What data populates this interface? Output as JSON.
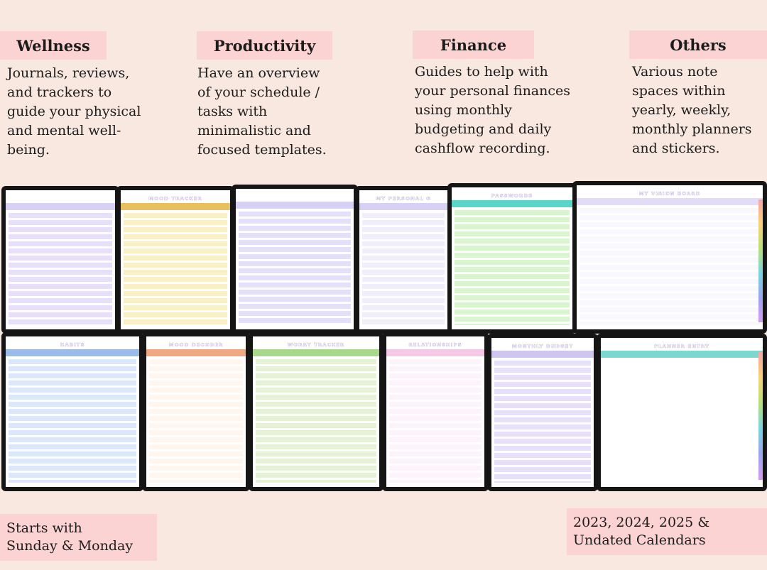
{
  "sections": [
    {
      "title": "Wellness",
      "lines": [
        "Journals, reviews,",
        "and trackers to",
        "guide your physical",
        "and mental well-",
        "being."
      ]
    },
    {
      "title": "Productivity",
      "lines": [
        "Have an overview",
        "of your schedule /",
        "tasks with",
        "minimalistic and",
        "focused  templates."
      ]
    },
    {
      "title": "Finance",
      "lines": [
        "Guides to help with",
        "your personal finances",
        "using monthly",
        "budgeting and daily",
        "cashflow recording."
      ]
    },
    {
      "title": "Others",
      "lines": [
        "Various note",
        "spaces within",
        "yearly, weekly,",
        "monthly planners",
        "and stickers."
      ]
    }
  ],
  "screens": {
    "titles": [
      "MOOD TRACKER",
      "MY PERSONAL G",
      "PASSWORDS",
      "MY VISION BOARD",
      "HABITS",
      "MOOD DECODER",
      "WORRY TRACKER",
      "RELATIONSHIPS",
      "MONTHLY BUDGET",
      "PLANNER ENTRY"
    ]
  },
  "notes": [
    {
      "lines": [
        "Starts with",
        "Sunday & Monday"
      ]
    },
    {
      "lines": [
        "2023, 2024, 2025 &",
        "Undated Calendars"
      ]
    }
  ]
}
